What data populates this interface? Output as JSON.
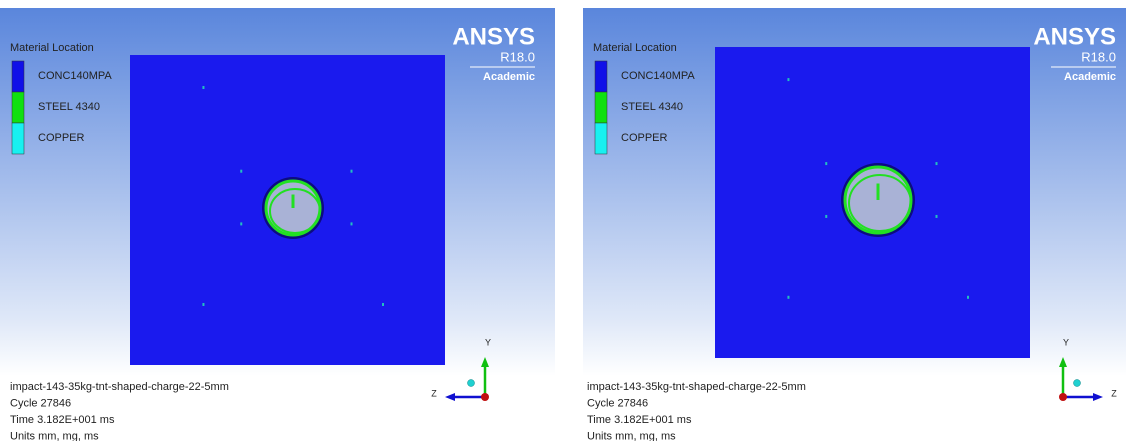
{
  "panels": [
    {
      "legend": {
        "title": "Material Location",
        "items": [
          {
            "label": "CONC140MPA",
            "color": "#1010e8"
          },
          {
            "label": "STEEL 4340",
            "color": "#10e010"
          },
          {
            "label": "COPPER",
            "color": "#18f0f0"
          }
        ]
      },
      "logo": {
        "brand": "ANSYS",
        "release": "R18.0",
        "edition": "Academic"
      },
      "info": [
        "impact-143-35kg-tnt-shaped-charge-22-5mm",
        "Cycle 27846",
        "Time 3.182E+001 ms",
        "Units mm, mg, ms"
      ],
      "axes": {
        "vertical": "Y",
        "horizontal": "Z"
      }
    },
    {
      "legend": {
        "title": "Material Location",
        "items": [
          {
            "label": "CONC140MPA",
            "color": "#1010e8"
          },
          {
            "label": "STEEL 4340",
            "color": "#10e010"
          },
          {
            "label": "COPPER",
            "color": "#18f0f0"
          }
        ]
      },
      "logo": {
        "brand": "ANSYS",
        "release": "R18.0",
        "edition": "Academic"
      },
      "info": [
        "impact-143-35kg-tnt-shaped-charge-22-5mm",
        "Cycle 27846",
        "Time 3.182E+001 ms",
        "Units mm, mg, ms"
      ],
      "axes": {
        "vertical": "Y",
        "horizontal": "Z"
      }
    }
  ]
}
